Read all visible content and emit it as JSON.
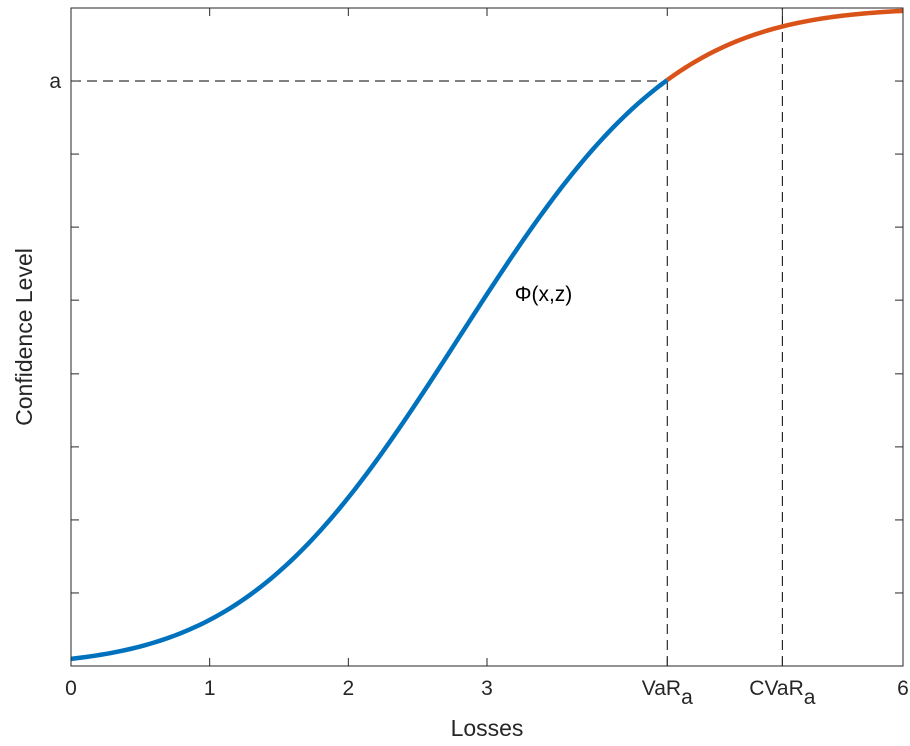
{
  "chart_data": {
    "type": "line",
    "title": "",
    "xlabel": "Losses",
    "ylabel": "Confidence Level",
    "xlim": [
      0,
      6
    ],
    "ylim": [
      0,
      1
    ],
    "grid": false,
    "legend": "none",
    "x_ticks": [
      {
        "value": 0,
        "label": "0"
      },
      {
        "value": 1,
        "label": "1"
      },
      {
        "value": 2,
        "label": "2"
      },
      {
        "value": 3,
        "label": "3"
      },
      {
        "value": 4.3,
        "label": "VaR",
        "subscript": "a"
      },
      {
        "value": 5.13,
        "label": "CVaR",
        "subscript": "a"
      },
      {
        "value": 6,
        "label": "6"
      }
    ],
    "y_ticks": [
      {
        "value": 0.111,
        "label": ""
      },
      {
        "value": 0.222,
        "label": ""
      },
      {
        "value": 0.333,
        "label": ""
      },
      {
        "value": 0.444,
        "label": ""
      },
      {
        "value": 0.556,
        "label": ""
      },
      {
        "value": 0.667,
        "label": ""
      },
      {
        "value": 0.778,
        "label": ""
      },
      {
        "value": 0.889,
        "label": "a"
      }
    ],
    "curve": {
      "distribution": "normal-cdf",
      "mean": 2.8,
      "std": 1.22
    },
    "series": [
      {
        "color": "#0072BD",
        "x": [
          0,
          0.25,
          0.5,
          0.75,
          1.0,
          1.25,
          1.5,
          1.75,
          2.0,
          2.25,
          2.5,
          2.75,
          3.0,
          3.25,
          3.5,
          3.75,
          4.0,
          4.3
        ],
        "y": [
          0.011,
          0.018,
          0.03,
          0.048,
          0.07,
          0.101,
          0.143,
          0.194,
          0.256,
          0.326,
          0.403,
          0.484,
          0.565,
          0.643,
          0.718,
          0.782,
          0.837,
          0.889
        ]
      },
      {
        "color": "#D95319",
        "x": [
          4.3,
          4.5,
          4.75,
          5.0,
          5.13,
          5.25,
          5.5,
          5.75,
          6.0
        ],
        "y": [
          0.889,
          0.918,
          0.945,
          0.965,
          0.972,
          0.978,
          0.986,
          0.992,
          0.995
        ]
      }
    ],
    "annotations": [
      {
        "text": "Φ(x,z)",
        "x": 3.2,
        "y": 0.555
      }
    ],
    "reference_lines": [
      {
        "type": "horizontal",
        "y": 0.889,
        "x_to": 4.3,
        "style": "dashed"
      },
      {
        "type": "vertical",
        "x": 4.3,
        "y_to": 0.889,
        "style": "dashed"
      },
      {
        "type": "vertical",
        "x": 5.13,
        "y_to": 1,
        "style": "dashed"
      }
    ],
    "colors": {
      "axis": "#262626",
      "reference": "#000000"
    }
  }
}
